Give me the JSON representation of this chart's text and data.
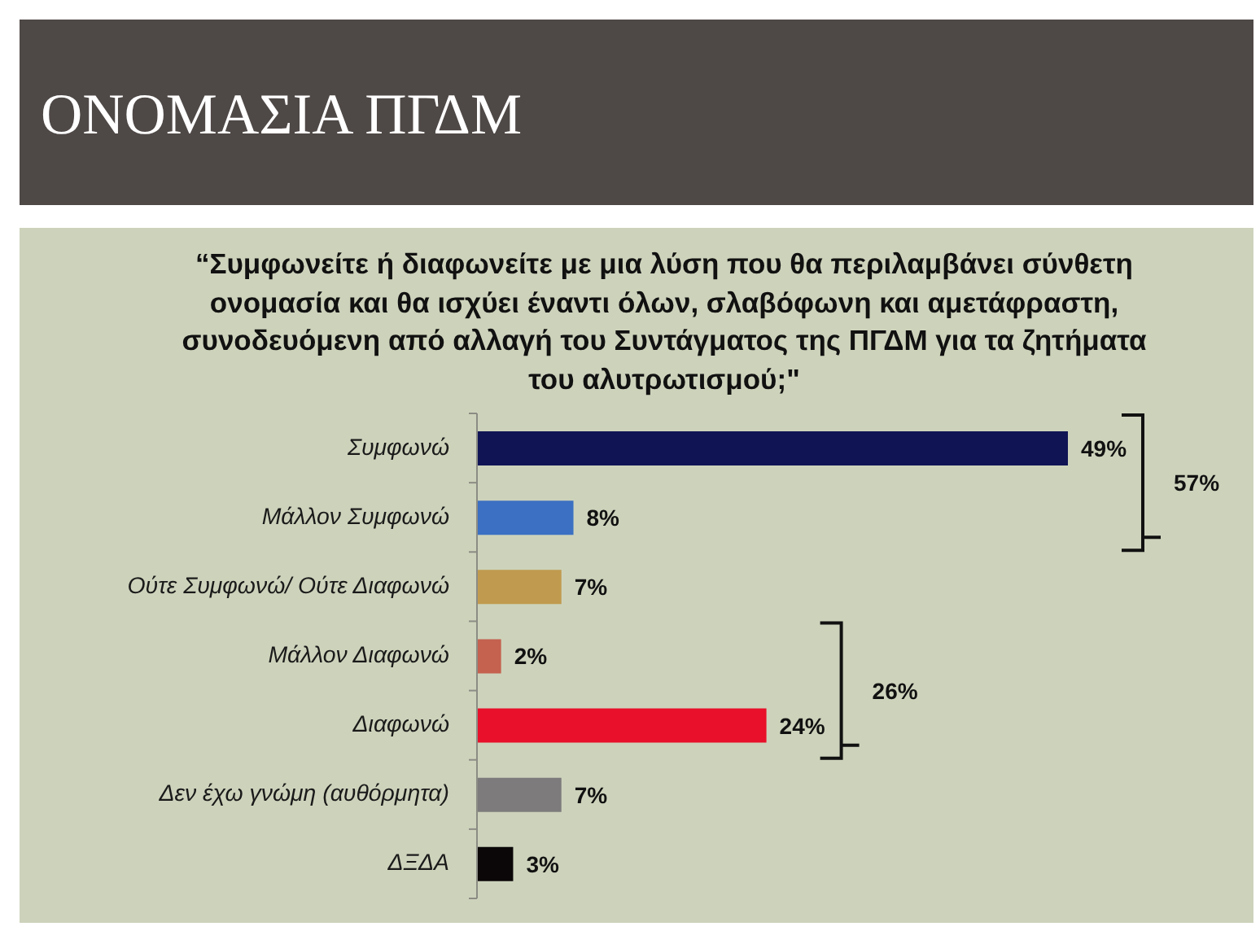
{
  "chart_data": {
    "type": "bar",
    "orientation": "horizontal",
    "title": "ΟΝΟΜΑΣΙΑ ΠΓΔΜ",
    "subtitle": "“Συμφωνείτε ή διαφωνείτε με μια λύση που θα περιλαμβάνει σύνθετη ονομασία και θα ισχύει έναντι όλων, σλαβόφωνη και αμετάφραστη, συνοδευόμενη από αλλαγή του Συντάγματος της ΠΓΔΜ για τα ζητήματα του αλυτρωτισμού;\"",
    "categories": [
      "Συμφωνώ",
      "Μάλλον Συμφωνώ",
      "Ούτε Συμφωνώ/ Ούτε Διαφωνώ",
      "Μάλλον Διαφωνώ",
      "Διαφωνώ",
      "Δεν έχω γνώμη (αυθόρμητα)",
      "ΔΞΔΑ"
    ],
    "values": [
      49,
      8,
      7,
      2,
      24,
      7,
      3
    ],
    "colors": [
      "#101455",
      "#3b70c2",
      "#c09a4e",
      "#c4614f",
      "#e8102a",
      "#7d7b7b",
      "#0b0708"
    ],
    "value_labels": [
      "49%",
      "8%",
      "7%",
      "2%",
      "24%",
      "7%",
      "3%"
    ],
    "annotations": [
      "57%",
      "26%"
    ]
  }
}
